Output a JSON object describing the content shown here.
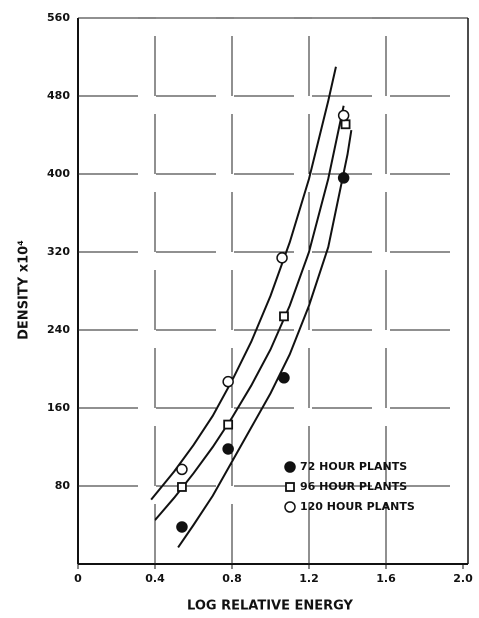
{
  "chart_data": {
    "type": "scatter",
    "xlabel": "LOG RELATIVE ENERGY",
    "ylabel": "DENSITY x10⁴",
    "xlim": [
      0,
      2
    ],
    "ylim": [
      0,
      560
    ],
    "xticks": [
      0,
      0.4,
      0.8,
      1.2,
      1.6,
      {
        "value": 2,
        "label": "2.0"
      }
    ],
    "yticks": [
      80,
      160,
      240,
      320,
      400,
      480,
      560
    ],
    "grid": true,
    "legend": "lower right",
    "series": [
      {
        "name": "72 HOUR PLANTS",
        "color": "#111111",
        "marker": "filled-circle",
        "x": [
          0.54,
          0.78,
          1.07,
          1.38
        ],
        "values": [
          38,
          118,
          191,
          396
        ]
      },
      {
        "name": "96 HOUR PLANTS",
        "color": "#111111",
        "marker": "square",
        "x": [
          0.54,
          0.78,
          1.07,
          1.39
        ],
        "values": [
          79,
          143,
          254,
          451
        ]
      },
      {
        "name": "120 HOUR PLANTS",
        "color": "#111111",
        "marker": "open-circle",
        "x": [
          0.54,
          0.78,
          1.06,
          1.38
        ],
        "values": [
          97,
          187,
          314,
          460
        ]
      }
    ],
    "curves": [
      {
        "x": [
          0.52,
          0.6,
          0.7,
          0.8,
          0.9,
          1.0,
          1.1,
          1.2,
          1.3,
          1.4,
          1.42
        ],
        "values": [
          17,
          40,
          70,
          105,
          140,
          175,
          215,
          265,
          325,
          420,
          445
        ]
      },
      {
        "x": [
          0.4,
          0.5,
          0.6,
          0.7,
          0.8,
          0.9,
          1.0,
          1.1,
          1.2,
          1.3,
          1.38
        ],
        "values": [
          45,
          68,
          93,
          120,
          150,
          183,
          220,
          265,
          320,
          395,
          470
        ]
      },
      {
        "x": [
          0.38,
          0.5,
          0.6,
          0.7,
          0.8,
          0.9,
          1.0,
          1.1,
          1.2,
          1.3,
          1.34
        ],
        "values": [
          66,
          95,
          122,
          152,
          188,
          228,
          275,
          330,
          395,
          475,
          510
        ]
      }
    ]
  }
}
